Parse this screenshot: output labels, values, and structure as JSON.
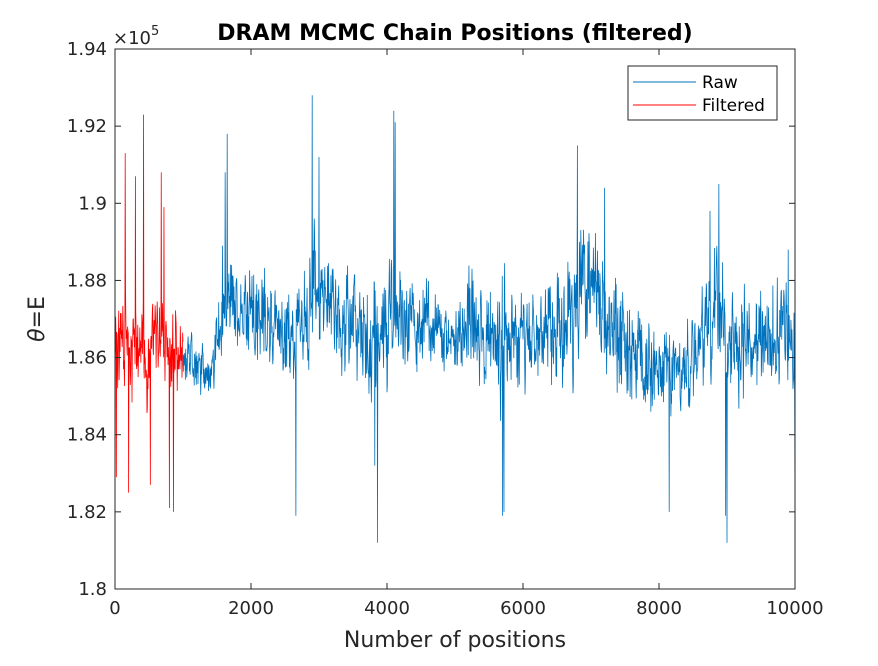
{
  "chart_data": {
    "type": "line",
    "title": "DRAM MCMC Chain Positions (filtered)",
    "xlabel": "Number of positions",
    "ylabel_symbol": "θ",
    "ylabel_rest": "=E",
    "exponent_label_base": "×10",
    "exponent_label_power": "5",
    "xlim": [
      0,
      10000
    ],
    "ylim": [
      180000,
      194000
    ],
    "x_ticks": [
      0,
      2000,
      4000,
      6000,
      8000,
      10000
    ],
    "x_tick_labels": [
      "0",
      "2000",
      "4000",
      "6000",
      "8000",
      "10000"
    ],
    "y_ticks": [
      180000,
      182000,
      184000,
      186000,
      188000,
      190000,
      192000,
      194000
    ],
    "y_tick_labels": [
      "1.8",
      "1.82",
      "1.84",
      "1.86",
      "1.88",
      "1.9",
      "1.92",
      "1.94"
    ],
    "grid": false,
    "legend_position": "top-right",
    "series": [
      {
        "name": "Raw",
        "color": "#0072BD",
        "envelope": {
          "x": [
            1000,
            1200,
            1400,
            1500,
            1600,
            1700,
            1800,
            2000,
            2200,
            2400,
            2600,
            2800,
            2900,
            3000,
            3200,
            3400,
            3600,
            3800,
            3900,
            4000,
            4100,
            4200,
            4400,
            4600,
            4800,
            5000,
            5200,
            5400,
            5600,
            5700,
            5800,
            6000,
            6200,
            6400,
            6600,
            6800,
            6900,
            7000,
            7200,
            7400,
            7600,
            7800,
            8000,
            8200,
            8400,
            8600,
            8800,
            8900,
            9000,
            9200,
            9400,
            9600,
            9800,
            10000
          ],
          "center": [
            186000,
            185800,
            185500,
            186300,
            187200,
            188000,
            187000,
            187200,
            187000,
            186800,
            186600,
            187000,
            187400,
            187600,
            187300,
            187000,
            186600,
            186300,
            186200,
            187000,
            187600,
            187200,
            186800,
            186800,
            186500,
            186700,
            186800,
            186500,
            186300,
            186200,
            186300,
            186600,
            186300,
            186700,
            186800,
            187500,
            188000,
            187500,
            187000,
            186500,
            186000,
            185800,
            185500,
            185700,
            185600,
            186200,
            187200,
            187000,
            186300,
            186200,
            186500,
            186400,
            186600,
            186000
          ],
          "amp": [
            1500,
            1300,
            1200,
            1800,
            2400,
            2800,
            2200,
            2300,
            2300,
            2400,
            2600,
            2900,
            3200,
            3000,
            2600,
            2500,
            2800,
            3300,
            3500,
            3300,
            3000,
            2700,
            2400,
            2300,
            2200,
            2300,
            2500,
            2400,
            2800,
            3100,
            2700,
            2400,
            2400,
            2800,
            3000,
            3500,
            3700,
            3400,
            2900,
            2700,
            2600,
            2600,
            2700,
            2500,
            2400,
            2700,
            3200,
            3400,
            3100,
            2800,
            2700,
            2800,
            2900,
            2600
          ]
        },
        "extrema": {
          "x": [
            1580,
            1620,
            1650,
            2660,
            2900,
            3000,
            3820,
            3860,
            4100,
            4120,
            5250,
            5700,
            5720,
            6800,
            6830,
            7200,
            8150,
            8750,
            8880,
            8980,
            9000,
            9900,
            10000
          ],
          "y": [
            188900,
            190800,
            191800,
            181900,
            192800,
            191200,
            183200,
            181200,
            192400,
            192100,
            188300,
            181900,
            182000,
            191500,
            189000,
            190400,
            182000,
            189800,
            190500,
            181900,
            181200,
            188800,
            181900
          ]
        },
        "seed": 1337
      },
      {
        "name": "Filtered",
        "color": "#FF0000",
        "x_range": [
          0,
          1000
        ],
        "center": 186200,
        "amp": 2600,
        "extrema": {
          "x": [
            20,
            150,
            200,
            300,
            420,
            520,
            680,
            720,
            800,
            860
          ],
          "y": [
            182900,
            191300,
            182500,
            190700,
            192300,
            182700,
            190800,
            189900,
            182100,
            182000
          ]
        },
        "seed": 4242
      }
    ]
  }
}
